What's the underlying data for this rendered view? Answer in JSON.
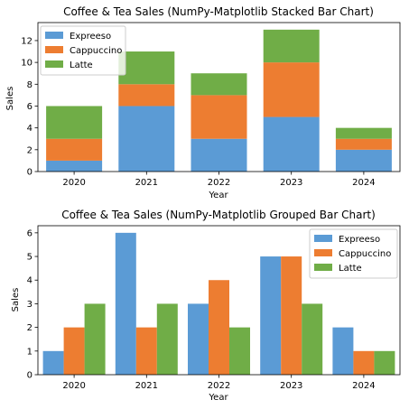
{
  "colors": {
    "Expreeso": "#5b9bd5",
    "Cappuccino": "#ed7d31",
    "Latte": "#70ad47"
  },
  "chart_data": [
    {
      "type": "bar",
      "stacked": true,
      "title": "Coffee & Tea Sales (NumPy-Matplotlib Stacked Bar Chart)",
      "xlabel": "Year",
      "ylabel": "Sales",
      "categories": [
        "2020",
        "2021",
        "2022",
        "2023",
        "2024"
      ],
      "series": [
        {
          "name": "Expreeso",
          "values": [
            1,
            6,
            3,
            5,
            2
          ]
        },
        {
          "name": "Cappuccino",
          "values": [
            2,
            2,
            4,
            5,
            1
          ]
        },
        {
          "name": "Latte",
          "values": [
            3,
            3,
            2,
            3,
            1
          ]
        }
      ],
      "ylim": [
        0,
        13.65
      ],
      "yticks": [
        0,
        2,
        4,
        6,
        8,
        10,
        12
      ],
      "legend": "top-left",
      "grid": false
    },
    {
      "type": "bar",
      "stacked": false,
      "title": "Coffee & Tea Sales (NumPy-Matplotlib Grouped Bar Chart)",
      "xlabel": "Year",
      "ylabel": "Sales",
      "categories": [
        "2020",
        "2021",
        "2022",
        "2023",
        "2024"
      ],
      "series": [
        {
          "name": "Expreeso",
          "values": [
            1,
            6,
            3,
            5,
            2
          ]
        },
        {
          "name": "Cappuccino",
          "values": [
            2,
            2,
            4,
            5,
            1
          ]
        },
        {
          "name": "Latte",
          "values": [
            3,
            3,
            2,
            3,
            1
          ]
        }
      ],
      "ylim": [
        0,
        6.3
      ],
      "yticks": [
        0,
        1,
        2,
        3,
        4,
        5,
        6
      ],
      "legend": "top-right",
      "grid": false
    }
  ]
}
